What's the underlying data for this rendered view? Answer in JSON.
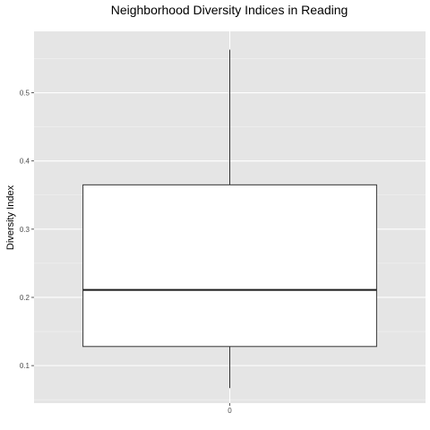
{
  "chart_data": {
    "type": "boxplot",
    "title": "Neighborhood Diversity Indices in Reading",
    "xlabel": "",
    "ylabel": "Diversity Index",
    "categories": [
      "0"
    ],
    "boxes": [
      {
        "category": "0",
        "min": 0.067,
        "q1": 0.128,
        "median": 0.211,
        "q3": 0.365,
        "max": 0.563
      }
    ],
    "ylim": [
      0.045,
      0.59
    ],
    "yticks": [
      0.1,
      0.2,
      0.3,
      0.4,
      0.5
    ],
    "ytick_labels": [
      "0.1",
      "0.2",
      "0.3",
      "0.4",
      "0.5"
    ],
    "grid": true,
    "colors": {
      "panel": "#e5e5e5",
      "grid_major": "#ffffff",
      "grid_minor": "#f2f2f2",
      "box_fill": "#ffffff",
      "box_stroke": "#333333",
      "tick_label": "#4d4d4d"
    }
  }
}
